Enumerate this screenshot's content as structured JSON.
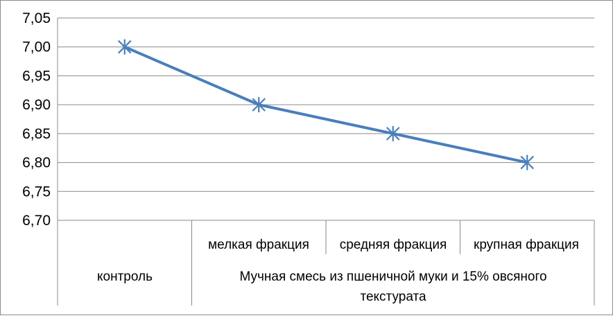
{
  "chart_data": {
    "type": "line",
    "title": "",
    "xlabel": "",
    "ylabel": "",
    "ylim": [
      6.7,
      7.05
    ],
    "y_ticks": [
      "6,70",
      "6,75",
      "6,80",
      "6,85",
      "6,90",
      "6,95",
      "7,00",
      "7,05"
    ],
    "y_tick_values": [
      6.7,
      6.75,
      6.8,
      6.85,
      6.9,
      6.95,
      7.0,
      7.05
    ],
    "grid": true,
    "legend": "none",
    "categories": [
      "контроль",
      "мелкая фракция",
      "средняя фракция",
      "крупная фракция"
    ],
    "group_label_control": "контроль",
    "group_label_mix_line1": "Мучная смесь из пшеничной муки и 15% овсяного",
    "group_label_mix_line2": "текстурата",
    "series": [
      {
        "values": [
          7.0,
          6.9,
          6.85,
          6.8
        ],
        "color": "#4a7ebb",
        "marker": "asterisk"
      }
    ]
  }
}
